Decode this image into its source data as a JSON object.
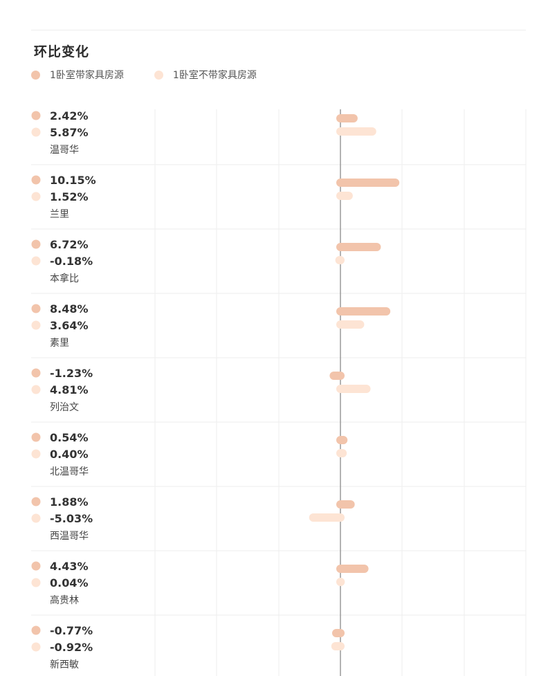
{
  "chart_title": "环比变化",
  "colors": {
    "series1": "#f2c4ab",
    "series2": "#fde4d4",
    "axis": "#999999",
    "grid": "#eeeeee"
  },
  "chart_data": {
    "type": "bar",
    "orientation": "horizontal",
    "title": "环比变化",
    "categories": [
      "温哥华",
      "兰里",
      "本拿比",
      "素里",
      "列治文",
      "北温哥华",
      "西温哥华",
      "高贵林",
      "新西敏"
    ],
    "series": [
      {
        "name": "1卧室带家具房源",
        "labels": [
          "2.42%",
          "10.15%",
          "6.72%",
          "8.48%",
          "-1.23%",
          "0.54%",
          "1.88%",
          "4.43%",
          "-0.77%"
        ],
        "values": [
          2.42,
          10.15,
          6.72,
          8.48,
          -1.23,
          0.54,
          1.88,
          4.43,
          -0.77
        ]
      },
      {
        "name": "1卧室不带家具房源",
        "labels": [
          "5.87%",
          "1.52%",
          "-0.18%",
          "3.64%",
          "4.81%",
          "0.40%",
          "-5.03%",
          "0.04%",
          "-0.92%"
        ],
        "values": [
          5.87,
          1.52,
          -0.18,
          3.64,
          4.81,
          0.4,
          -5.03,
          0.04,
          -0.92
        ]
      }
    ],
    "legend_position": "top-left",
    "grid": true
  }
}
